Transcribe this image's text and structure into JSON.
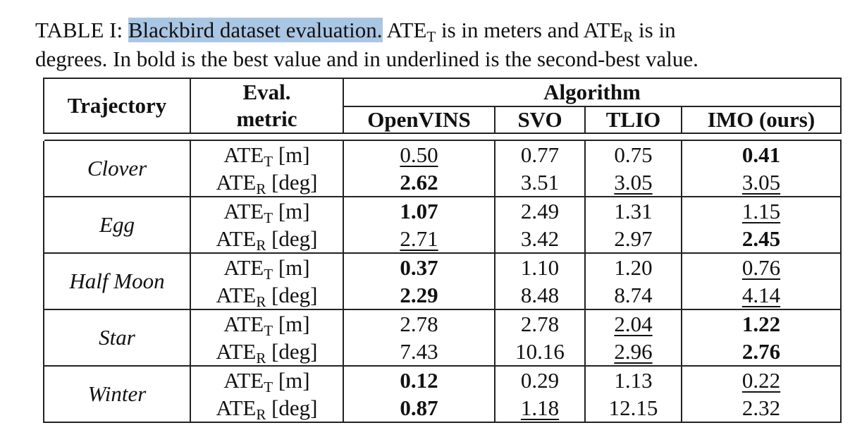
{
  "caption": {
    "prefix": "TABLE I: ",
    "highlight": "Blackbird dataset evaluation.",
    "line1_rest_a": " ATE",
    "sub_t": "T",
    "line1_rest_b": " is in meters and ATE",
    "sub_r": "R",
    "line1_rest_c": " is in",
    "line2": "degrees. In bold is the best value and in underlined is the second-best value."
  },
  "headers": {
    "trajectory": "Trajectory",
    "eval_line1": "Eval.",
    "eval_line2": "metric",
    "algorithm": "Algorithm",
    "algorithms": [
      "OpenVINS",
      "SVO",
      "TLIO",
      "IMO (ours)"
    ]
  },
  "metrics": {
    "ate": "ATE",
    "t_sub": "T",
    "r_sub": "R",
    "t_unit": " [m]",
    "r_unit": " [deg]"
  },
  "rows": [
    {
      "trajectory": "Clover",
      "t": [
        {
          "v": "0.50",
          "s": "u"
        },
        {
          "v": "0.77",
          "s": ""
        },
        {
          "v": "0.75",
          "s": ""
        },
        {
          "v": "0.41",
          "s": "b"
        }
      ],
      "r": [
        {
          "v": "2.62",
          "s": "b"
        },
        {
          "v": "3.51",
          "s": ""
        },
        {
          "v": "3.05",
          "s": "u"
        },
        {
          "v": "3.05",
          "s": "u"
        }
      ]
    },
    {
      "trajectory": "Egg",
      "t": [
        {
          "v": "1.07",
          "s": "b"
        },
        {
          "v": "2.49",
          "s": ""
        },
        {
          "v": "1.31",
          "s": ""
        },
        {
          "v": "1.15",
          "s": "u"
        }
      ],
      "r": [
        {
          "v": "2.71",
          "s": "u"
        },
        {
          "v": "3.42",
          "s": ""
        },
        {
          "v": "2.97",
          "s": ""
        },
        {
          "v": "2.45",
          "s": "b"
        }
      ]
    },
    {
      "trajectory": "Half Moon",
      "t": [
        {
          "v": "0.37",
          "s": "b"
        },
        {
          "v": "1.10",
          "s": ""
        },
        {
          "v": "1.20",
          "s": ""
        },
        {
          "v": "0.76",
          "s": "u"
        }
      ],
      "r": [
        {
          "v": "2.29",
          "s": "b"
        },
        {
          "v": "8.48",
          "s": ""
        },
        {
          "v": "8.74",
          "s": ""
        },
        {
          "v": "4.14",
          "s": "u"
        }
      ]
    },
    {
      "trajectory": "Star",
      "t": [
        {
          "v": "2.78",
          "s": ""
        },
        {
          "v": "2.78",
          "s": ""
        },
        {
          "v": "2.04",
          "s": "u"
        },
        {
          "v": "1.22",
          "s": "b"
        }
      ],
      "r": [
        {
          "v": "7.43",
          "s": ""
        },
        {
          "v": "10.16",
          "s": ""
        },
        {
          "v": "2.96",
          "s": "u"
        },
        {
          "v": "2.76",
          "s": "b"
        }
      ]
    },
    {
      "trajectory": "Winter",
      "t": [
        {
          "v": "0.12",
          "s": "b"
        },
        {
          "v": "0.29",
          "s": ""
        },
        {
          "v": "1.13",
          "s": ""
        },
        {
          "v": "0.22",
          "s": "u"
        }
      ],
      "r": [
        {
          "v": "0.87",
          "s": "b"
        },
        {
          "v": "1.18",
          "s": "u"
        },
        {
          "v": "12.15",
          "s": ""
        },
        {
          "v": "2.32",
          "s": ""
        }
      ]
    }
  ]
}
